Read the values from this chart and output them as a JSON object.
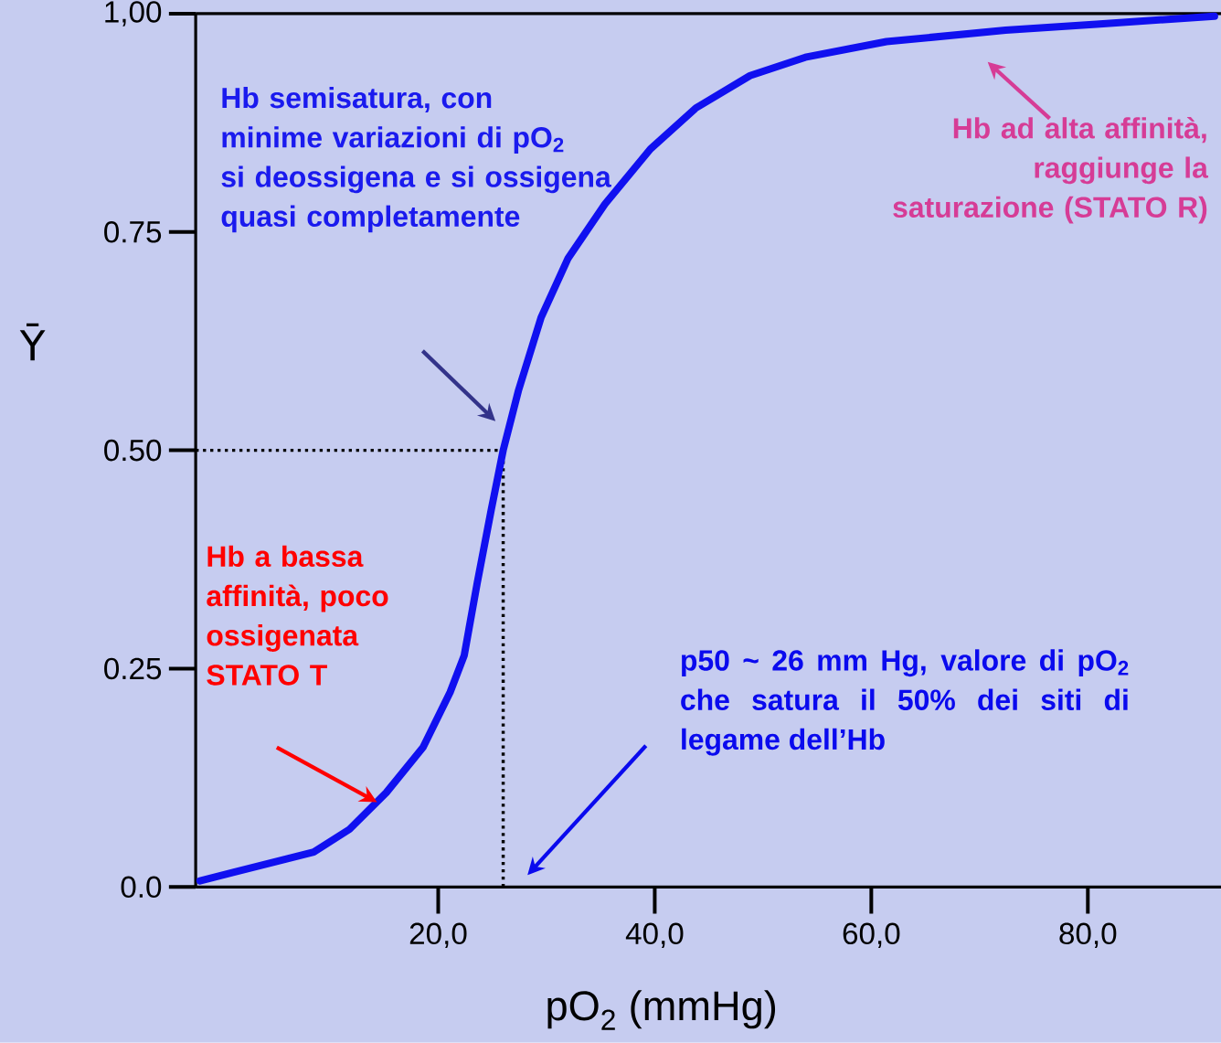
{
  "chart_data": {
    "type": "line",
    "xlabel": "pO$_{2}$ (mmHg)",
    "ylabel": "Ȳ",
    "x": [
      -2.0,
      3.4,
      8.5,
      11.8,
      15.2,
      18.6,
      21.1,
      22.4,
      23.6,
      24.9,
      26.0,
      27.4,
      29.5,
      32.0,
      35.4,
      39.6,
      43.8,
      48.8,
      53.9,
      61.4,
      72.4,
      80.8,
      91.7
    ],
    "series": [
      {
        "color": "#1010f0",
        "values": [
          0.007,
          0.024,
          0.04,
          0.066,
          0.108,
          0.16,
          0.223,
          0.265,
          0.348,
          0.432,
          0.5,
          0.568,
          0.652,
          0.72,
          0.782,
          0.845,
          0.892,
          0.929,
          0.95,
          0.968,
          0.981,
          0.988,
          0.997
        ]
      }
    ],
    "line_style": "solid",
    "xlim": [
      -2.4,
      92.3
    ],
    "ylim": [
      0,
      1
    ],
    "xticks": [
      {
        "value": 20,
        "label": "20,0"
      },
      {
        "value": 40,
        "label": "40,0"
      },
      {
        "value": 60,
        "label": "60,0"
      },
      {
        "value": 80,
        "label": "80,0"
      }
    ],
    "yticks": [
      {
        "value": 0,
        "label": "0.0"
      },
      {
        "value": 0.25,
        "label": "0.25"
      },
      {
        "value": 0.5,
        "label": "0.50"
      },
      {
        "value": 0.75,
        "label": "0.75"
      },
      {
        "value": 1,
        "label": "1,00"
      }
    ],
    "ref_lines": [
      {
        "axis": "y",
        "value": 0.5,
        "line_style": "dotted",
        "color": "#000000"
      },
      {
        "axis": "x",
        "value": 26,
        "line_style": "dotted",
        "color": "#000000"
      }
    ],
    "annotations": [
      "Hb semisatura, con minime variazioni di pO$_{2}$ si deossigena e si ossigena quasi completamente",
      "Hb ad alta affinità, raggiunge la saturazione (STATO R)",
      "Hb a bassa affinità, poco ossigenata STATO T",
      "p50 ~ 26 mm Hg, valore di pO$_{2}$ che satura il 50% dei siti di legame dell’Hb"
    ]
  }
}
